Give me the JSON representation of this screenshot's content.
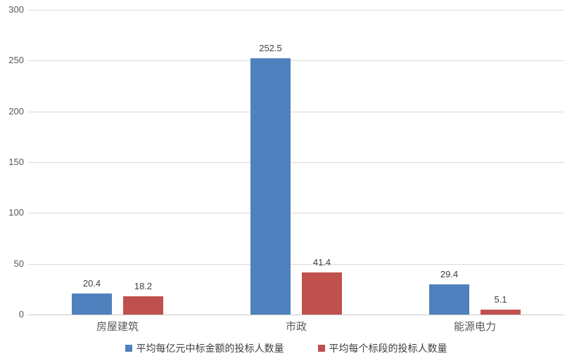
{
  "chart_data": {
    "type": "bar",
    "title": "",
    "xlabel": "",
    "ylabel": "",
    "categories": [
      "房屋建筑",
      "市政",
      "能源电力"
    ],
    "series": [
      {
        "name": "平均每亿元中标金额的投标人数量",
        "color": "#4E81BD",
        "values": [
          20.4,
          252.5,
          29.4
        ]
      },
      {
        "name": "平均每个标段的投标人数量",
        "color": "#C0504D",
        "values": [
          18.2,
          41.4,
          5.1
        ]
      }
    ],
    "ylim": [
      0,
      300
    ],
    "yticks": [
      0,
      50,
      100,
      150,
      200,
      250,
      300
    ],
    "grid": true,
    "legend_position": "bottom"
  },
  "colors": {
    "background": "#FFFFFF",
    "gridline": "#D9D9D9",
    "axis_line": "#C9C9C9",
    "axis_text": "#595959",
    "data_label_text": "#3F3F3F",
    "legend_text": "#404040"
  }
}
